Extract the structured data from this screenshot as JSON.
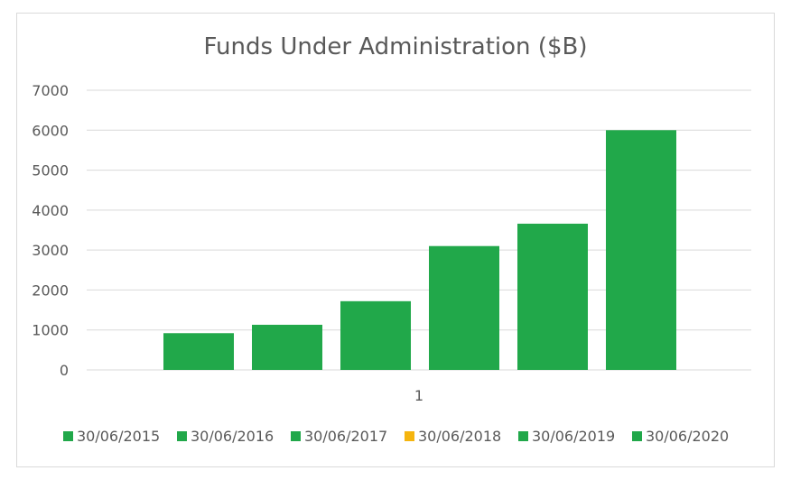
{
  "chart_data": {
    "type": "bar",
    "title": "Funds Under Administration ($B)",
    "categories": [
      "1"
    ],
    "ylim": [
      0,
      7000
    ],
    "yticks": [
      0,
      1000,
      2000,
      3000,
      4000,
      5000,
      6000,
      7000
    ],
    "grid": true,
    "legend_position": "bottom",
    "series": [
      {
        "name": "30/06/2015",
        "values": [
          920
        ],
        "color": "#21a84a"
      },
      {
        "name": "30/06/2016",
        "values": [
          1130
        ],
        "color": "#21a84a"
      },
      {
        "name": "30/06/2017",
        "values": [
          1720
        ],
        "color": "#21a84a"
      },
      {
        "name": "30/06/2018",
        "values": [
          3100
        ],
        "color": "#21a84a",
        "legend_color": "#f5b50f"
      },
      {
        "name": "30/06/2019",
        "values": [
          3660
        ],
        "color": "#21a84a"
      },
      {
        "name": "30/06/2020",
        "values": [
          6000
        ],
        "color": "#21a84a"
      }
    ]
  }
}
